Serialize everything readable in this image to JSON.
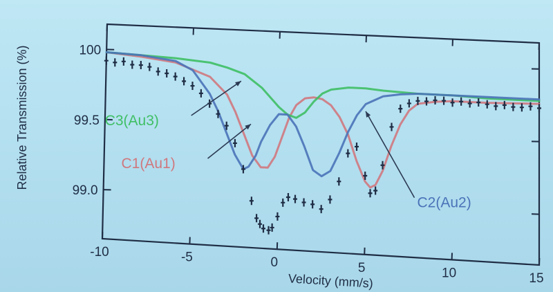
{
  "chart_data": {
    "type": "line",
    "xlabel": "Velocity (mm/s)",
    "ylabel": "Relative Transmission (%)",
    "xlim": [
      -10,
      15
    ],
    "ylim": [
      98.65,
      100.18
    ],
    "xticks": [
      "-10",
      "-5",
      "0",
      "5",
      "10",
      "15"
    ],
    "yticks": [
      "99.0",
      "99.5",
      "100"
    ],
    "grid": false,
    "legend": "none",
    "background_color": "#b7e2f1",
    "axis_color": "#1f2d44",
    "measured": {
      "color": "#1f2d44",
      "x": [
        -10.0,
        -9.5,
        -9.0,
        -8.5,
        -8.0,
        -7.5,
        -7.0,
        -6.5,
        -6.0,
        -5.5,
        -5.0,
        -4.5,
        -4.0,
        -3.5,
        -3.0,
        -2.5,
        -2.0,
        -1.5,
        -1.2,
        -1.0,
        -0.8,
        -0.5,
        -0.3,
        0.0,
        0.3,
        0.6,
        1.0,
        1.5,
        2.0,
        2.5,
        3.0,
        3.5,
        4.0,
        4.5,
        5.0,
        5.3,
        5.6,
        6.0,
        6.5,
        7.0,
        7.5,
        8.0,
        8.5,
        9.0,
        9.5,
        10.0,
        10.5,
        11.0,
        11.5,
        12.0,
        12.5,
        13.0,
        13.5,
        14.0,
        14.5,
        15.0
      ],
      "y": [
        99.92,
        99.91,
        99.92,
        99.9,
        99.9,
        99.89,
        99.86,
        99.85,
        99.83,
        99.8,
        99.77,
        99.72,
        99.65,
        99.58,
        99.5,
        99.38,
        99.2,
        98.98,
        98.86,
        98.82,
        98.79,
        98.78,
        98.8,
        98.88,
        98.98,
        99.02,
        99.01,
        98.99,
        98.98,
        98.95,
        99.02,
        99.15,
        99.35,
        99.4,
        99.2,
        99.08,
        99.1,
        99.28,
        99.55,
        99.68,
        99.72,
        99.74,
        99.74,
        99.75,
        99.75,
        99.74,
        99.75,
        99.74,
        99.75,
        99.74,
        99.73,
        99.74,
        99.73,
        99.73,
        99.74,
        99.73
      ]
    },
    "series": [
      {
        "name": "C1(Au1)",
        "color": "#d0787e",
        "x": [
          -10,
          -8,
          -6,
          -4,
          -3,
          -2.5,
          -2,
          -1.5,
          -1,
          -0.6,
          -0.2,
          0.2,
          0.6,
          1,
          1.5,
          2,
          2.5,
          3,
          3.5,
          4,
          4.5,
          5,
          5.3,
          5.6,
          6,
          6.5,
          7,
          7.5,
          8,
          9,
          10,
          12,
          15
        ],
        "y": [
          99.98,
          99.96,
          99.93,
          99.84,
          99.72,
          99.6,
          99.45,
          99.3,
          99.22,
          99.22,
          99.3,
          99.44,
          99.58,
          99.67,
          99.72,
          99.73,
          99.72,
          99.68,
          99.6,
          99.48,
          99.3,
          99.16,
          99.12,
          99.14,
          99.24,
          99.42,
          99.57,
          99.67,
          99.72,
          99.74,
          99.75,
          99.75,
          99.76
        ]
      },
      {
        "name": "C3(Au3)",
        "color": "#3fbf64",
        "x": [
          -10,
          -8,
          -6,
          -4,
          -3,
          -2,
          -1,
          0,
          0.5,
          1,
          1.5,
          2,
          2.5,
          3,
          4,
          5,
          6,
          8,
          10,
          12,
          15
        ],
        "y": [
          99.98,
          99.97,
          99.96,
          99.94,
          99.91,
          99.87,
          99.78,
          99.65,
          99.6,
          99.58,
          99.62,
          99.7,
          99.76,
          99.79,
          99.81,
          99.81,
          99.8,
          99.79,
          99.79,
          99.78,
          99.78
        ]
      },
      {
        "name": "C2(Au2)",
        "color": "#4a73b8",
        "x": [
          -10,
          -8,
          -6,
          -5,
          -4,
          -3.5,
          -3,
          -2.5,
          -2,
          -1.7,
          -1.3,
          -1,
          -0.5,
          0,
          0.5,
          1,
          1.5,
          2,
          2.5,
          3,
          3.5,
          4,
          4.5,
          5,
          6,
          7,
          8,
          10,
          12,
          15
        ],
        "y": [
          99.98,
          99.97,
          99.94,
          99.88,
          99.72,
          99.6,
          99.45,
          99.3,
          99.2,
          99.22,
          99.3,
          99.4,
          99.52,
          99.6,
          99.6,
          99.52,
          99.38,
          99.22,
          99.18,
          99.22,
          99.35,
          99.5,
          99.62,
          99.7,
          99.76,
          99.78,
          99.79,
          99.79,
          99.79,
          99.79
        ]
      }
    ],
    "annotations": [
      {
        "text": "C3(Au3)",
        "color": "#3fbf64",
        "x": -10,
        "y": 99.46,
        "arrow_to": [
          -2.2,
          99.82
        ]
      },
      {
        "text": "C1(Au1)",
        "color": "#d0787e",
        "x": -9,
        "y": 99.16,
        "arrow_to": [
          -1.6,
          99.52
        ]
      },
      {
        "text": "C2(Au2)",
        "color": "#4a73b8",
        "x": 8,
        "y": 99.0,
        "arrow_to": [
          5.0,
          99.65
        ]
      }
    ]
  }
}
